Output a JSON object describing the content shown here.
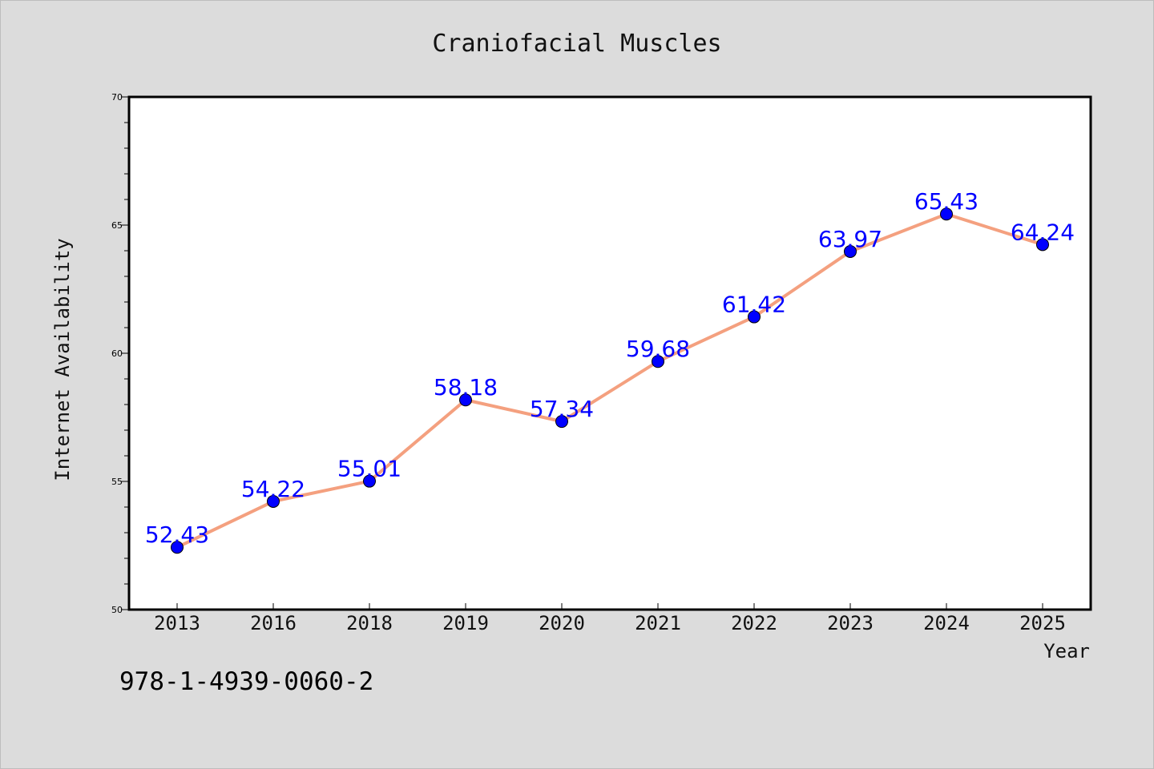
{
  "chart_data": {
    "type": "line",
    "title": "Craniofacial Muscles",
    "xlabel": "Year",
    "ylabel": "Internet Availability",
    "categories": [
      "2013",
      "2016",
      "2018",
      "2019",
      "2020",
      "2021",
      "2022",
      "2023",
      "2024",
      "2025"
    ],
    "values": [
      52.43,
      54.22,
      55.01,
      58.18,
      57.34,
      59.68,
      61.42,
      63.97,
      65.43,
      64.24
    ],
    "data_labels": [
      "52.43",
      "54.22",
      "55.01",
      "58.18",
      "57.34",
      "59.68",
      "61.42",
      "63.97",
      "65.43",
      "64.24"
    ],
    "ylim": [
      50,
      70
    ],
    "yticks": [
      50,
      55,
      60,
      65,
      70
    ],
    "grid": false,
    "colors": {
      "line": "#f4a07f",
      "marker": "#0000ff",
      "label": "#0000ff",
      "background": "#dcdcdc",
      "plot_area": "#ffffff"
    }
  },
  "footer_text": "978-1-4939-0060-2"
}
